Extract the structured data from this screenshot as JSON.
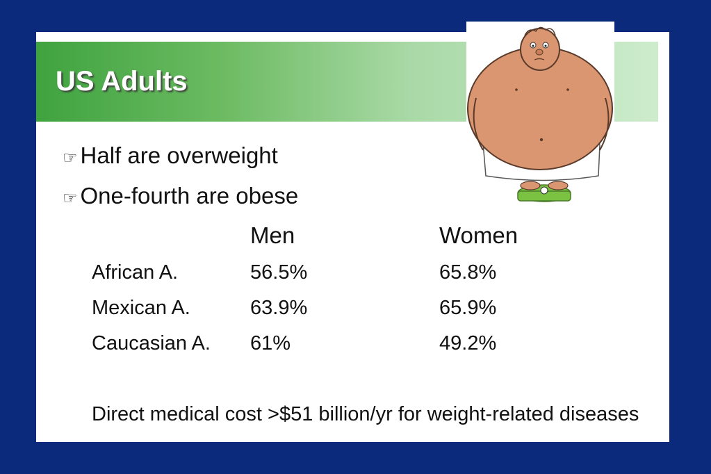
{
  "slide": {
    "title": "US Adults",
    "bullets": [
      {
        "icon": "pointing-hand-icon",
        "text": "Half are overweight"
      },
      {
        "icon": "pointing-hand-icon",
        "text": "One-fourth are obese"
      }
    ],
    "table": {
      "headers": [
        "Men",
        "Women"
      ],
      "rows": [
        {
          "label": "African A.",
          "men": "56.5%",
          "women": "65.8%"
        },
        {
          "label": "Mexican A.",
          "men": "63.9%",
          "women": "65.9%"
        },
        {
          "label": "Caucasian A.",
          "men": "61%",
          "women": "49.2%"
        }
      ]
    },
    "note": "Direct medical cost >$51 billion/yr for weight-related diseases",
    "colors": {
      "frame": "#0c2a7c",
      "title_bar_start": "#3fa33f",
      "title_bar_end": "#cdeccc",
      "scale": "#7cc242"
    }
  }
}
